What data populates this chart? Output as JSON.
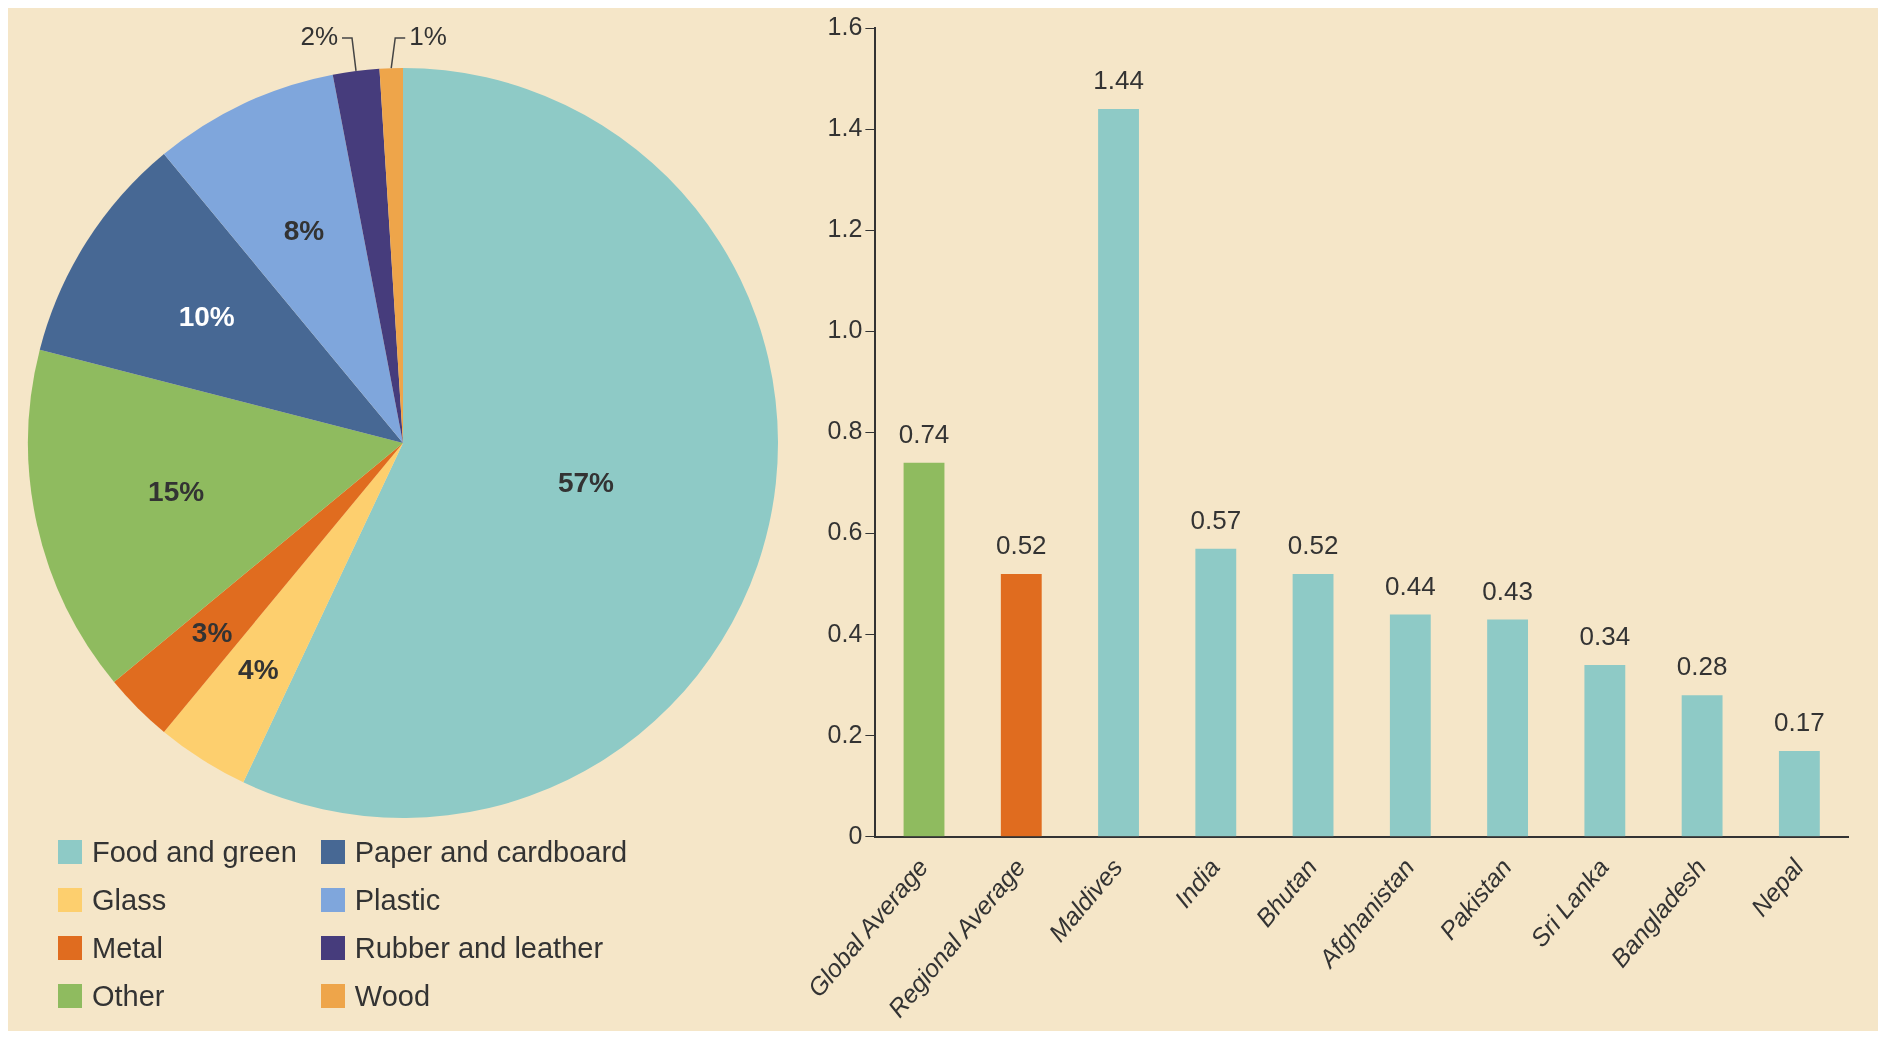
{
  "chart_data": [
    {
      "type": "pie",
      "categories": [
        "Food and green",
        "Glass",
        "Metal",
        "Other",
        "Paper and cardboard",
        "Plastic",
        "Rubber and leather",
        "Wood"
      ],
      "values": [
        57,
        4,
        3,
        15,
        10,
        8,
        2,
        1
      ],
      "colors": [
        "#8ecac6",
        "#fdcf6e",
        "#e06c1f",
        "#8fbb5f",
        "#476894",
        "#7fa6dc",
        "#463c7c",
        "#eea54a"
      ],
      "value_labels": [
        "57%",
        "4%",
        "3%",
        "15%",
        "10%",
        "8%",
        "2%",
        "1%"
      ],
      "legend": "bottom"
    },
    {
      "type": "bar",
      "categories": [
        "Global Average",
        "Regional Average",
        "Maldives",
        "India",
        "Bhutan",
        "Afghanistan",
        "Pakistan",
        "Sri Lanka",
        "Bangladesh",
        "Nepal"
      ],
      "values": [
        0.74,
        0.52,
        1.44,
        0.57,
        0.52,
        0.44,
        0.43,
        0.34,
        0.28,
        0.17
      ],
      "colors": [
        "#8fbb5f",
        "#e06c1f",
        "#8ecac6",
        "#8ecac6",
        "#8ecac6",
        "#8ecac6",
        "#8ecac6",
        "#8ecac6",
        "#8ecac6",
        "#8ecac6"
      ],
      "ylim": [
        0,
        1.6
      ],
      "yticks": [
        0,
        0.2,
        0.4,
        0.6,
        0.8,
        {
          "value": 1,
          "label": "1.0"
        },
        1.2,
        1.4,
        1.6
      ],
      "grid": false,
      "data_labels": true
    }
  ]
}
